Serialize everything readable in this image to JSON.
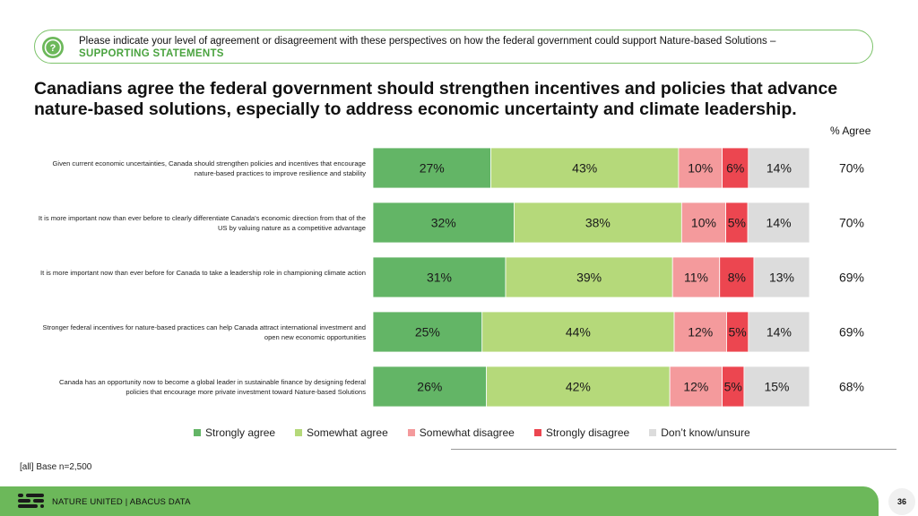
{
  "question": {
    "text": "Please indicate your level of agreement or disagreement with these perspectives on how the federal government could support Nature-based Solutions –",
    "subtitle": "SUPPORTING STATEMENTS"
  },
  "headline": "Canadians agree the federal government should strengthen incentives and policies that advance nature-based solutions, especially to address economic uncertainty and climate leadership.",
  "chart_data": {
    "type": "bar",
    "orientation": "horizontal-stacked-100",
    "categories": [
      "Given current economic uncertainties, Canada should strengthen policies and incentives that encourage nature-based practices to improve resilience and stability",
      "It is more important now than ever before to clearly differentiate Canada's economic direction from that of the US by valuing nature as a competitive advantage",
      "It is more important now than ever before for Canada to take a leadership role in championing climate action",
      "Stronger federal incentives for nature-based practices can help Canada attract international investment and open new economic opportunities",
      "Canada has an opportunity now to become a global leader in sustainable finance by designing federal policies that encourage more private investment toward Nature-based Solutions"
    ],
    "series": [
      {
        "name": "Strongly agree",
        "color": "#63b566",
        "values": [
          27,
          32,
          31,
          25,
          26
        ]
      },
      {
        "name": "Somewhat agree",
        "color": "#b5d97a",
        "values": [
          43,
          38,
          39,
          44,
          42
        ]
      },
      {
        "name": "Somewhat disagree",
        "color": "#f49a9c",
        "values": [
          10,
          10,
          11,
          12,
          12
        ]
      },
      {
        "name": "Strongly disagree",
        "color": "#ec4650",
        "values": [
          6,
          5,
          8,
          5,
          5
        ]
      },
      {
        "name": "Don't know/unsure",
        "color": "#dcdcdc",
        "values": [
          14,
          14,
          13,
          14,
          15
        ]
      }
    ],
    "agree_header": "% Agree",
    "agree_totals": [
      70,
      70,
      69,
      69,
      68
    ],
    "value_suffix": "%",
    "xlim": [
      0,
      100
    ]
  },
  "legend_labels": [
    "Strongly agree",
    "Somewhat agree",
    "Somewhat disagree",
    "Strongly disagree",
    "Don’t know/unsure"
  ],
  "base_note": "[all] Base n=2,500",
  "footer": {
    "text": "NATURE UNITED | ABACUS DATA",
    "page": "36"
  }
}
